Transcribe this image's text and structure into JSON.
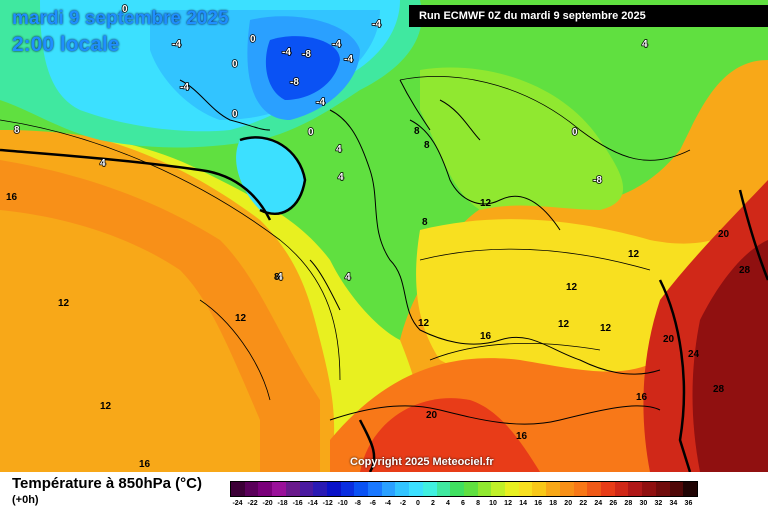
{
  "map": {
    "date_title": "mardi 9 septembre 2025",
    "time_title": "2:00 locale",
    "run_info": "Run ECMWF 0Z du mardi 9 septembre 2025",
    "copyright": "Copyright 2025 Meteociel.fr",
    "contour_labels": [
      {
        "text": "0"
      },
      {
        "text": "0"
      },
      {
        "text": "0"
      },
      {
        "text": "0"
      },
      {
        "text": "0"
      },
      {
        "text": "0"
      },
      {
        "text": "-4"
      },
      {
        "text": "-4"
      },
      {
        "text": "-4"
      },
      {
        "text": "-4"
      },
      {
        "text": "-4"
      },
      {
        "text": "-4"
      },
      {
        "text": "-4"
      },
      {
        "text": "-8"
      },
      {
        "text": "-8"
      },
      {
        "text": "-8"
      },
      {
        "text": "4"
      },
      {
        "text": "4"
      },
      {
        "text": "4"
      },
      {
        "text": "4"
      },
      {
        "text": "4"
      },
      {
        "text": "4"
      },
      {
        "text": "8"
      },
      {
        "text": "8"
      },
      {
        "text": "8"
      },
      {
        "text": "8"
      },
      {
        "text": "8"
      },
      {
        "text": "12"
      },
      {
        "text": "12"
      },
      {
        "text": "12"
      },
      {
        "text": "12"
      },
      {
        "text": "12"
      },
      {
        "text": "12"
      },
      {
        "text": "12"
      },
      {
        "text": "12"
      },
      {
        "text": "12"
      },
      {
        "text": "16"
      },
      {
        "text": "16"
      },
      {
        "text": "16"
      },
      {
        "text": "16"
      },
      {
        "text": "16"
      },
      {
        "text": "20"
      },
      {
        "text": "20"
      },
      {
        "text": "20"
      },
      {
        "text": "24"
      },
      {
        "text": "28"
      },
      {
        "text": "28"
      }
    ]
  },
  "legend": {
    "parameter": "Température à 850hPa (°C)",
    "lead_time": "(+0h)",
    "colors": [
      "#3c0037",
      "#5a005a",
      "#7a007a",
      "#9a109a",
      "#6a1a8c",
      "#4a1aa0",
      "#2a1ab4",
      "#0a12c8",
      "#0a2ee0",
      "#0a52f4",
      "#1a78ff",
      "#2aa0ff",
      "#32c4ff",
      "#3ce0ff",
      "#40f0e0",
      "#40e8a0",
      "#40e060",
      "#60e040",
      "#90e830",
      "#c0f028",
      "#e8f020",
      "#f8e020",
      "#f8c818",
      "#f8a818",
      "#f89018",
      "#f87818",
      "#f05a18",
      "#e83c18",
      "#d02818",
      "#b01818",
      "#901010",
      "#700c0c",
      "#500808",
      "#200404"
    ],
    "ticks": [
      "-24",
      "-22",
      "-20",
      "-18",
      "-16",
      "-14",
      "-12",
      "-10",
      "-8",
      "-6",
      "-4",
      "-2",
      "0",
      "2",
      "4",
      "6",
      "8",
      "10",
      "12",
      "14",
      "16",
      "18",
      "20",
      "22",
      "24",
      "26",
      "28",
      "30",
      "32",
      "34",
      "36"
    ]
  }
}
